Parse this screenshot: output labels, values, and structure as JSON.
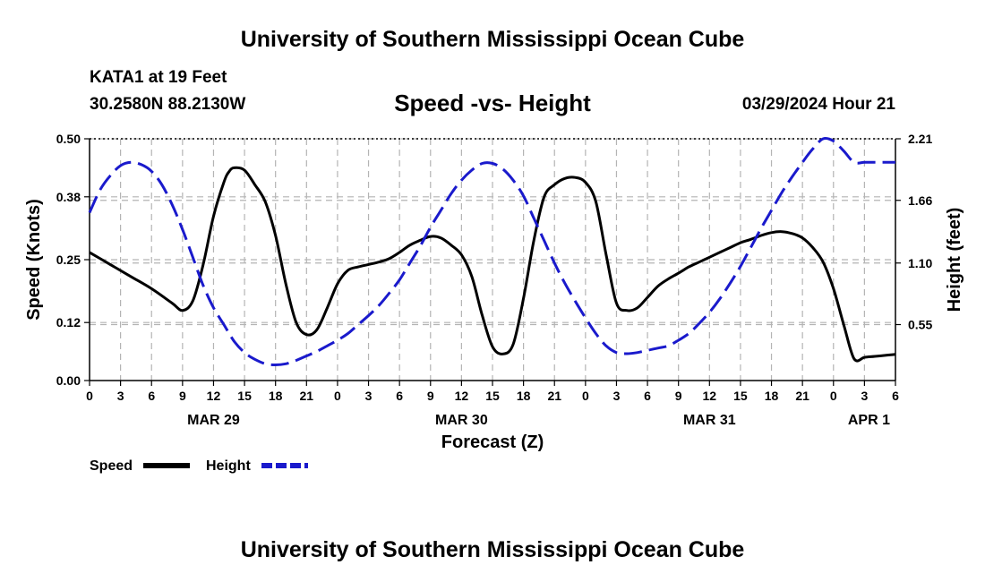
{
  "header": {
    "title": "University of Southern Mississippi Ocean Cube",
    "station": "KATA1 at 19 Feet",
    "coords": "30.2580N  88.2130W",
    "chart_title": "Speed -vs- Height",
    "datetime": "03/29/2024 Hour 21"
  },
  "footer": {
    "title": "University of Southern Mississippi Ocean Cube"
  },
  "colors": {
    "speed": "#000000",
    "height": "#1a1acc",
    "grid": "#b4b4b4"
  },
  "chart_data": {
    "type": "line",
    "title": "Speed -vs- Height",
    "xlabel": "Forecast (Z)",
    "ylabel_left": "Speed (Knots)",
    "ylabel_right": "Height (feet)",
    "x_unit": "hours from MAR 29 00Z",
    "xlim": [
      0,
      78
    ],
    "ylim_left": [
      0,
      0.5
    ],
    "ylim_right": [
      0.05,
      2.21
    ],
    "x_ticks": [
      0,
      3,
      6,
      9,
      12,
      15,
      18,
      21,
      24,
      27,
      30,
      33,
      36,
      39,
      42,
      45,
      48,
      51,
      54,
      57,
      60,
      63,
      66,
      69,
      72,
      75,
      78
    ],
    "x_tick_labels": [
      "0",
      "3",
      "6",
      "9",
      "12",
      "15",
      "18",
      "21",
      "0",
      "3",
      "6",
      "9",
      "12",
      "15",
      "18",
      "21",
      "0",
      "3",
      "6",
      "9",
      "12",
      "15",
      "18",
      "21",
      "0",
      "3",
      "6"
    ],
    "left_ticks": [
      0.0,
      0.12,
      0.25,
      0.38,
      0.5
    ],
    "left_tick_labels": [
      "0.00",
      "0.12",
      "0.25",
      "0.38",
      "0.50"
    ],
    "right_ticks": [
      0.55,
      1.1,
      1.66,
      2.21
    ],
    "right_tick_labels": [
      "0.55",
      "1.10",
      "1.66",
      "2.21"
    ],
    "day_labels": [
      {
        "label": "MAR 29",
        "x": 12
      },
      {
        "label": "MAR 30",
        "x": 36
      },
      {
        "label": "MAR 31",
        "x": 60
      },
      {
        "label": "APR 1",
        "x": 78
      }
    ],
    "series": [
      {
        "name": "Speed",
        "axis": "left",
        "style": "solid",
        "x": [
          0,
          2,
          4,
          6,
          8,
          9,
          10,
          11,
          12,
          13,
          13.5,
          14,
          15,
          16,
          17,
          18,
          19,
          20,
          21,
          22,
          23,
          24,
          25,
          26,
          27,
          28,
          29,
          30,
          31,
          32,
          33,
          34,
          35,
          36,
          37,
          38,
          39,
          40,
          41,
          42,
          43,
          44,
          45,
          46,
          47,
          48,
          49,
          50,
          51,
          52,
          53,
          54,
          55,
          56,
          57,
          58,
          59,
          60,
          61,
          62,
          63,
          64,
          65,
          66,
          67,
          68,
          69,
          70,
          71,
          72,
          73,
          74,
          75,
          76,
          77,
          78
        ],
        "values": [
          0.265,
          0.24,
          0.215,
          0.19,
          0.16,
          0.145,
          0.165,
          0.24,
          0.34,
          0.41,
          0.432,
          0.44,
          0.435,
          0.405,
          0.37,
          0.3,
          0.2,
          0.12,
          0.095,
          0.105,
          0.15,
          0.2,
          0.228,
          0.235,
          0.24,
          0.245,
          0.252,
          0.265,
          0.28,
          0.29,
          0.298,
          0.295,
          0.28,
          0.26,
          0.215,
          0.135,
          0.07,
          0.055,
          0.075,
          0.17,
          0.29,
          0.38,
          0.405,
          0.418,
          0.42,
          0.41,
          0.37,
          0.26,
          0.16,
          0.145,
          0.15,
          0.172,
          0.195,
          0.21,
          0.222,
          0.235,
          0.245,
          0.255,
          0.265,
          0.275,
          0.285,
          0.292,
          0.3,
          0.306,
          0.308,
          0.304,
          0.295,
          0.275,
          0.245,
          0.19,
          0.115,
          0.045,
          0.048,
          0.05,
          0.052,
          0.054
        ]
      },
      {
        "name": "Height",
        "axis": "right",
        "style": "dashed",
        "x": [
          0,
          1,
          2,
          3,
          4,
          5,
          6,
          7,
          8,
          9,
          10,
          11,
          12,
          13,
          14,
          15,
          16,
          17,
          18,
          19,
          20,
          21,
          22,
          23,
          24,
          25,
          26,
          27,
          28,
          29,
          30,
          31,
          32,
          33,
          34,
          35,
          36,
          37,
          38,
          39,
          40,
          41,
          42,
          43,
          44,
          45,
          46,
          47,
          48,
          49,
          50,
          51,
          52,
          53,
          54,
          55,
          56,
          57,
          58,
          59,
          60,
          61,
          62,
          63,
          64,
          65,
          66,
          67,
          68,
          69,
          70,
          71,
          72,
          73,
          74,
          75,
          76,
          77,
          78
        ],
        "values": [
          1.55,
          1.75,
          1.88,
          1.97,
          2.0,
          1.98,
          1.92,
          1.8,
          1.62,
          1.4,
          1.15,
          0.9,
          0.7,
          0.55,
          0.4,
          0.3,
          0.24,
          0.2,
          0.19,
          0.2,
          0.23,
          0.27,
          0.31,
          0.36,
          0.41,
          0.47,
          0.55,
          0.63,
          0.72,
          0.83,
          0.95,
          1.1,
          1.25,
          1.42,
          1.57,
          1.72,
          1.84,
          1.93,
          1.99,
          1.99,
          1.94,
          1.84,
          1.7,
          1.5,
          1.3,
          1.1,
          0.92,
          0.76,
          0.61,
          0.47,
          0.36,
          0.3,
          0.29,
          0.3,
          0.32,
          0.34,
          0.36,
          0.41,
          0.47,
          0.56,
          0.66,
          0.78,
          0.92,
          1.07,
          1.24,
          1.41,
          1.57,
          1.73,
          1.87,
          2.0,
          2.12,
          2.21,
          2.19,
          2.1,
          2.0,
          2.0,
          2.0,
          2.0,
          2.0
        ]
      }
    ],
    "legend": [
      {
        "name": "Speed",
        "style": "solid"
      },
      {
        "name": "Height",
        "style": "dashed"
      }
    ]
  }
}
